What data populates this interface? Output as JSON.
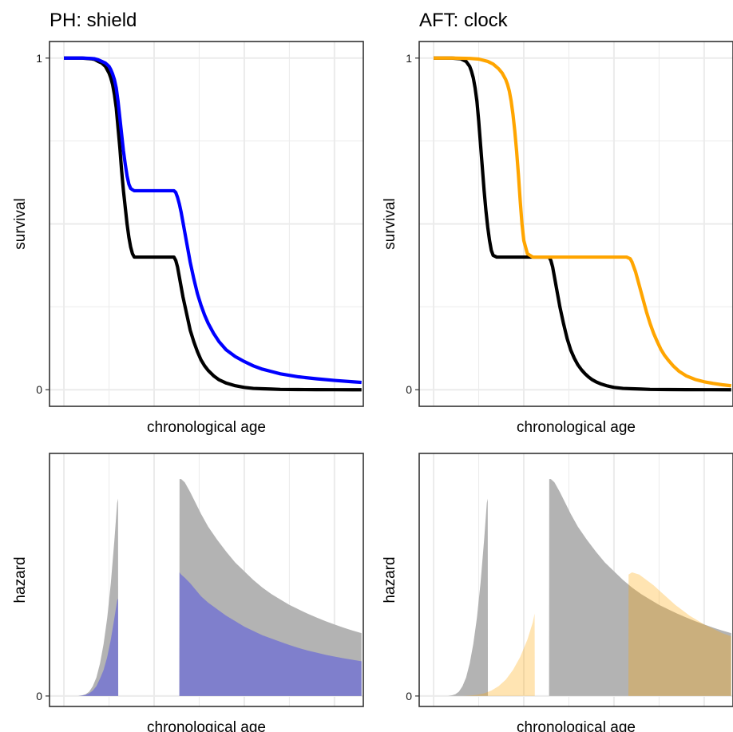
{
  "colors": {
    "baseline": "#000000",
    "ph_treated": "#0000FF",
    "aft_treated": "#FFA500",
    "hazard_baseline_fill": "#B3B3B3",
    "hazard_ph_fill": "#7F7FCC",
    "hazard_aft_fill": "#FFA500",
    "grid": "#EBEBEB",
    "panel_border": "#333333"
  },
  "chart_data": [
    {
      "type": "line",
      "title": "PH: shield",
      "xlabel": "chronological age",
      "ylabel": "survival",
      "ylim": [
        0,
        1
      ],
      "ytick_labels": [
        "0",
        "1"
      ],
      "x_tick_labels": false,
      "grid": true,
      "series": [
        {
          "color": "#000000",
          "x": [
            0.0,
            1.0,
            1.5,
            1.7,
            1.9,
            2.1,
            2.3,
            2.5,
            2.6,
            2.7,
            2.8,
            2.9,
            3.0,
            3.1,
            3.2,
            3.3,
            3.4,
            3.5,
            3.6,
            3.7,
            3.8,
            3.9,
            4.0,
            4.2,
            4.5,
            5.0,
            5.5,
            5.8,
            6.0,
            6.1,
            6.2,
            6.3,
            6.4,
            6.5,
            6.6,
            6.8,
            7.0,
            7.2,
            7.4,
            7.6,
            7.8,
            8.0,
            8.3,
            8.6,
            9.0,
            9.5,
            10.0,
            10.5,
            11.0,
            11.5,
            12.0,
            13.0,
            14.0,
            15.0,
            16.0,
            16.5
          ],
          "y": [
            1.0,
            1.0,
            0.998,
            0.996,
            0.99,
            0.985,
            0.975,
            0.955,
            0.94,
            0.92,
            0.89,
            0.85,
            0.79,
            0.73,
            0.66,
            0.6,
            0.55,
            0.5,
            0.46,
            0.43,
            0.41,
            0.4,
            0.4,
            0.4,
            0.4,
            0.4,
            0.4,
            0.4,
            0.4,
            0.4,
            0.39,
            0.37,
            0.34,
            0.31,
            0.28,
            0.23,
            0.18,
            0.145,
            0.115,
            0.09,
            0.072,
            0.058,
            0.042,
            0.03,
            0.02,
            0.012,
            0.007,
            0.004,
            0.003,
            0.002,
            0.001,
            0.0005,
            0.0002,
            0.0001,
            0.0,
            0.0
          ]
        },
        {
          "color": "#0000FF",
          "x": [
            0.0,
            1.0,
            1.5,
            1.7,
            1.9,
            2.1,
            2.3,
            2.5,
            2.6,
            2.7,
            2.8,
            2.9,
            3.0,
            3.1,
            3.2,
            3.3,
            3.4,
            3.5,
            3.6,
            3.7,
            3.8,
            3.9,
            4.0,
            4.2,
            4.5,
            5.0,
            5.5,
            5.8,
            6.0,
            6.1,
            6.2,
            6.3,
            6.4,
            6.5,
            6.6,
            6.8,
            7.0,
            7.2,
            7.4,
            7.6,
            7.8,
            8.0,
            8.3,
            8.6,
            9.0,
            9.5,
            10.0,
            10.5,
            11.0,
            11.5,
            12.0,
            13.0,
            14.0,
            15.0,
            16.0,
            16.5
          ],
          "y": [
            1.0,
            1.0,
            0.999,
            0.998,
            0.995,
            0.99,
            0.985,
            0.975,
            0.965,
            0.952,
            0.935,
            0.91,
            0.87,
            0.82,
            0.77,
            0.72,
            0.68,
            0.645,
            0.62,
            0.607,
            0.603,
            0.6,
            0.6,
            0.6,
            0.6,
            0.6,
            0.6,
            0.6,
            0.6,
            0.6,
            0.595,
            0.58,
            0.56,
            0.535,
            0.505,
            0.445,
            0.385,
            0.335,
            0.29,
            0.255,
            0.225,
            0.2,
            0.17,
            0.145,
            0.12,
            0.1,
            0.085,
            0.072,
            0.062,
            0.055,
            0.048,
            0.039,
            0.033,
            0.028,
            0.024,
            0.022
          ]
        }
      ]
    },
    {
      "type": "line",
      "title": "AFT: clock",
      "xlabel": "chronological age",
      "ylabel": "survival",
      "ylim": [
        0,
        1
      ],
      "ytick_labels": [
        "0",
        "1"
      ],
      "x_tick_labels": false,
      "grid": true,
      "series": [
        {
          "color": "#000000",
          "x": [
            0.0,
            1.0,
            1.5,
            1.8,
            2.0,
            2.1,
            2.2,
            2.3,
            2.4,
            2.5,
            2.6,
            2.7,
            2.8,
            2.9,
            3.0,
            3.1,
            3.2,
            3.3,
            3.5,
            4.0,
            5.0,
            6.0,
            6.4,
            6.5,
            6.6,
            6.7,
            6.8,
            6.9,
            7.0,
            7.2,
            7.4,
            7.6,
            7.8,
            8.0,
            8.2,
            8.4,
            8.6,
            8.8,
            9.0,
            9.3,
            9.6,
            10.0,
            10.5,
            11.0,
            11.5,
            12.0,
            13.0,
            14.0,
            15.0,
            16.5
          ],
          "y": [
            1.0,
            1.0,
            0.998,
            0.99,
            0.975,
            0.96,
            0.94,
            0.91,
            0.87,
            0.81,
            0.74,
            0.67,
            0.6,
            0.54,
            0.49,
            0.45,
            0.42,
            0.405,
            0.4,
            0.4,
            0.4,
            0.4,
            0.4,
            0.39,
            0.37,
            0.34,
            0.31,
            0.28,
            0.25,
            0.2,
            0.155,
            0.12,
            0.095,
            0.075,
            0.06,
            0.048,
            0.038,
            0.03,
            0.024,
            0.017,
            0.012,
            0.007,
            0.004,
            0.003,
            0.002,
            0.001,
            0.0005,
            0.0002,
            0.0001,
            0.0
          ]
        },
        {
          "color": "#FFA500",
          "x": [
            0.0,
            1.0,
            2.0,
            2.5,
            3.0,
            3.3,
            3.6,
            3.8,
            4.0,
            4.1,
            4.2,
            4.3,
            4.4,
            4.5,
            4.6,
            4.7,
            4.8,
            4.9,
            5.0,
            5.2,
            5.5,
            6.0,
            8.0,
            10.0,
            10.7,
            10.9,
            11.0,
            11.1,
            11.2,
            11.3,
            11.4,
            11.6,
            11.8,
            12.0,
            12.2,
            12.4,
            12.6,
            12.8,
            13.0,
            13.3,
            13.6,
            14.0,
            14.5,
            15.0,
            15.5,
            16.0,
            16.5
          ],
          "y": [
            1.0,
            1.0,
            0.999,
            0.997,
            0.99,
            0.982,
            0.968,
            0.955,
            0.935,
            0.92,
            0.9,
            0.87,
            0.83,
            0.78,
            0.72,
            0.65,
            0.57,
            0.5,
            0.45,
            0.41,
            0.4,
            0.4,
            0.4,
            0.4,
            0.4,
            0.395,
            0.385,
            0.37,
            0.355,
            0.335,
            0.315,
            0.275,
            0.235,
            0.2,
            0.17,
            0.145,
            0.122,
            0.104,
            0.09,
            0.071,
            0.056,
            0.042,
            0.031,
            0.024,
            0.019,
            0.015,
            0.012
          ]
        }
      ]
    },
    {
      "type": "area",
      "title": "",
      "xlabel": "chronological age",
      "ylabel": "hazard",
      "ylim": [
        0,
        1.07
      ],
      "ytick_labels": [
        "0"
      ],
      "x_tick_labels": false,
      "grid": true,
      "series": [
        {
          "color": "#B3B3B3",
          "x": [
            0.0,
            0.8,
            1.0,
            1.2,
            1.4,
            1.6,
            1.8,
            2.0,
            2.2,
            2.4,
            2.6,
            2.8,
            2.95,
            3.0,
            3.01,
            3.3,
            6.4,
            6.41,
            6.5,
            6.7,
            7.0,
            7.3,
            7.6,
            8.0,
            8.5,
            9.0,
            9.5,
            10.0,
            10.5,
            11.0,
            11.5,
            12.0,
            12.5,
            13.0,
            13.5,
            14.0,
            14.5,
            15.0,
            15.5,
            16.0,
            16.5
          ],
          "y": [
            0.0,
            0.0,
            0.003,
            0.008,
            0.02,
            0.045,
            0.085,
            0.15,
            0.24,
            0.36,
            0.52,
            0.72,
            0.89,
            0.91,
            0.0,
            0.0,
            0.0,
            1.0,
            1.0,
            0.985,
            0.94,
            0.89,
            0.84,
            0.78,
            0.72,
            0.665,
            0.615,
            0.575,
            0.535,
            0.5,
            0.47,
            0.445,
            0.42,
            0.4,
            0.38,
            0.362,
            0.345,
            0.33,
            0.315,
            0.302,
            0.29
          ]
        },
        {
          "color": "#7F7FCC",
          "x": [
            0.0,
            0.8,
            1.0,
            1.2,
            1.4,
            1.6,
            1.8,
            2.0,
            2.2,
            2.4,
            2.6,
            2.8,
            2.95,
            3.0,
            3.01,
            3.3,
            6.4,
            6.41,
            6.5,
            6.7,
            7.0,
            7.3,
            7.6,
            8.0,
            8.5,
            9.0,
            9.5,
            10.0,
            10.5,
            11.0,
            11.5,
            12.0,
            12.5,
            13.0,
            13.5,
            14.0,
            14.5,
            15.0,
            15.5,
            16.0,
            16.5
          ],
          "y": [
            0.0,
            0.0,
            0.002,
            0.005,
            0.012,
            0.025,
            0.045,
            0.08,
            0.12,
            0.18,
            0.26,
            0.36,
            0.44,
            0.45,
            0.0,
            0.0,
            0.0,
            0.57,
            0.56,
            0.545,
            0.52,
            0.49,
            0.46,
            0.43,
            0.4,
            0.37,
            0.345,
            0.32,
            0.3,
            0.28,
            0.265,
            0.25,
            0.235,
            0.222,
            0.21,
            0.2,
            0.19,
            0.182,
            0.174,
            0.167,
            0.16
          ]
        }
      ]
    },
    {
      "type": "area",
      "title": "",
      "xlabel": "chronological age",
      "ylabel": "hazard",
      "ylim": [
        0,
        1.07
      ],
      "ytick_labels": [
        "0"
      ],
      "x_tick_labels": false,
      "grid": true,
      "series": [
        {
          "color": "#B3B3B3",
          "x": [
            0.0,
            0.8,
            1.0,
            1.2,
            1.4,
            1.6,
            1.8,
            2.0,
            2.2,
            2.4,
            2.6,
            2.8,
            2.95,
            3.0,
            3.01,
            3.3,
            6.4,
            6.41,
            6.5,
            6.7,
            7.0,
            7.3,
            7.6,
            8.0,
            8.5,
            9.0,
            9.5,
            10.0,
            10.5,
            11.0,
            11.5,
            12.0,
            12.5,
            13.0,
            13.5,
            14.0,
            14.5,
            15.0,
            15.5,
            16.0,
            16.5
          ],
          "y": [
            0.0,
            0.0,
            0.003,
            0.008,
            0.02,
            0.045,
            0.085,
            0.15,
            0.24,
            0.36,
            0.52,
            0.72,
            0.89,
            0.91,
            0.0,
            0.0,
            0.0,
            1.0,
            1.0,
            0.985,
            0.94,
            0.89,
            0.84,
            0.78,
            0.72,
            0.665,
            0.615,
            0.575,
            0.535,
            0.5,
            0.47,
            0.445,
            0.42,
            0.4,
            0.38,
            0.362,
            0.345,
            0.33,
            0.315,
            0.302,
            0.29
          ]
        },
        {
          "color": "#FFA500",
          "x": [
            0.0,
            1.6,
            2.0,
            2.4,
            2.8,
            3.2,
            3.6,
            4.0,
            4.4,
            4.8,
            5.2,
            5.5,
            5.6,
            5.61,
            6.0,
            10.8,
            10.81,
            11.0,
            11.4,
            11.8,
            12.2,
            12.6,
            13.0,
            13.4,
            13.8,
            14.2,
            14.6,
            15.0,
            15.5,
            16.0,
            16.5
          ],
          "y": [
            0.0,
            0.0,
            0.002,
            0.005,
            0.012,
            0.025,
            0.045,
            0.075,
            0.12,
            0.18,
            0.26,
            0.34,
            0.38,
            0.0,
            0.0,
            0.0,
            0.56,
            0.57,
            0.56,
            0.535,
            0.51,
            0.48,
            0.45,
            0.42,
            0.395,
            0.37,
            0.35,
            0.33,
            0.31,
            0.29,
            0.275
          ]
        }
      ]
    }
  ]
}
